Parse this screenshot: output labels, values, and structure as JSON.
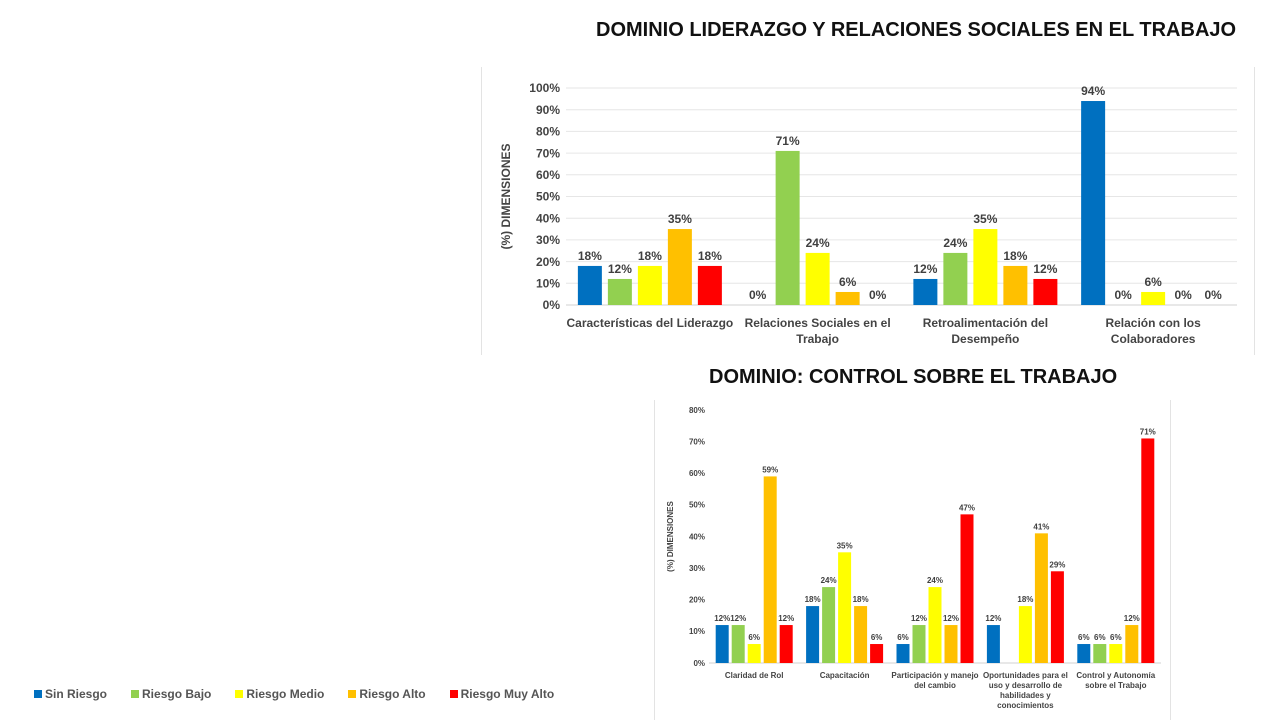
{
  "page": {
    "title_top": "DOMINIO LIDERAZGO Y RELACIONES SOCIALES EN EL TRABAJO",
    "title_bottom": "DOMINIO: CONTROL SOBRE EL TRABAJO"
  },
  "legend": [
    {
      "label": "Sin Riesgo",
      "color": "#0070C0"
    },
    {
      "label": "Riesgo Bajo",
      "color": "#92D050"
    },
    {
      "label": "Riesgo Medio",
      "color": "#FFFF00"
    },
    {
      "label": "Riesgo Alto",
      "color": "#FFC000"
    },
    {
      "label": "Riesgo Muy Alto",
      "color": "#FF0000"
    }
  ],
  "chart_data": [
    {
      "type": "bar",
      "title": "DOMINIO LIDERAZGO Y RELACIONES SOCIALES EN EL TRABAJO",
      "ylabel": "(%) DIMENSIONES",
      "xlabel": "",
      "ylim": [
        0,
        100
      ],
      "yticks": [
        "0%",
        "10%",
        "20%",
        "30%",
        "40%",
        "50%",
        "60%",
        "70%",
        "80%",
        "90%",
        "100%"
      ],
      "grid": true,
      "categories": [
        [
          "Características del Liderazgo"
        ],
        [
          "Relaciones Sociales en el",
          "Trabajo"
        ],
        [
          "Retroalimentación del",
          "Desempeño"
        ],
        [
          "Relación con los",
          "Colaboradores"
        ]
      ],
      "series": [
        {
          "name": "Sin Riesgo",
          "color": "#0070C0",
          "values": [
            18,
            0,
            12,
            94
          ]
        },
        {
          "name": "Riesgo Bajo",
          "color": "#92D050",
          "values": [
            12,
            71,
            24,
            0
          ]
        },
        {
          "name": "Riesgo Medio",
          "color": "#FFFF00",
          "values": [
            18,
            24,
            35,
            6
          ]
        },
        {
          "name": "Riesgo Alto",
          "color": "#FFC000",
          "values": [
            35,
            6,
            18,
            0
          ]
        },
        {
          "name": "Riesgo Muy Alto",
          "color": "#FF0000",
          "values": [
            18,
            0,
            12,
            0
          ]
        }
      ]
    },
    {
      "type": "bar",
      "title": "DOMINIO: CONTROL SOBRE EL TRABAJO",
      "ylabel": "(%) DIMENSIONES",
      "xlabel": "",
      "ylim": [
        0,
        80
      ],
      "yticks": [
        "0%",
        "10%",
        "20%",
        "30%",
        "40%",
        "50%",
        "60%",
        "70%",
        "80%"
      ],
      "grid": false,
      "categories": [
        [
          "Claridad de Rol"
        ],
        [
          "Capacitación"
        ],
        [
          "Participación y manejo",
          "del cambio"
        ],
        [
          "Oportunidades para el",
          "uso y desarrollo de",
          "habilidades y",
          "conocimientos"
        ],
        [
          "Control y Autonomía",
          "sobre el Trabajo"
        ]
      ],
      "series": [
        {
          "name": "Sin Riesgo",
          "color": "#0070C0",
          "values": [
            12,
            18,
            6,
            12,
            6
          ]
        },
        {
          "name": "Riesgo Bajo",
          "color": "#92D050",
          "values": [
            12,
            24,
            12,
            0,
            6
          ]
        },
        {
          "name": "Riesgo Medio",
          "color": "#FFFF00",
          "values": [
            6,
            35,
            24,
            18,
            6
          ]
        },
        {
          "name": "Riesgo Alto",
          "color": "#FFC000",
          "values": [
            59,
            18,
            12,
            41,
            12
          ]
        },
        {
          "name": "Riesgo Muy Alto",
          "color": "#FF0000",
          "values": [
            12,
            6,
            47,
            29,
            71
          ]
        }
      ],
      "hidden_labels": [
        [
          3,
          1
        ]
      ]
    }
  ]
}
